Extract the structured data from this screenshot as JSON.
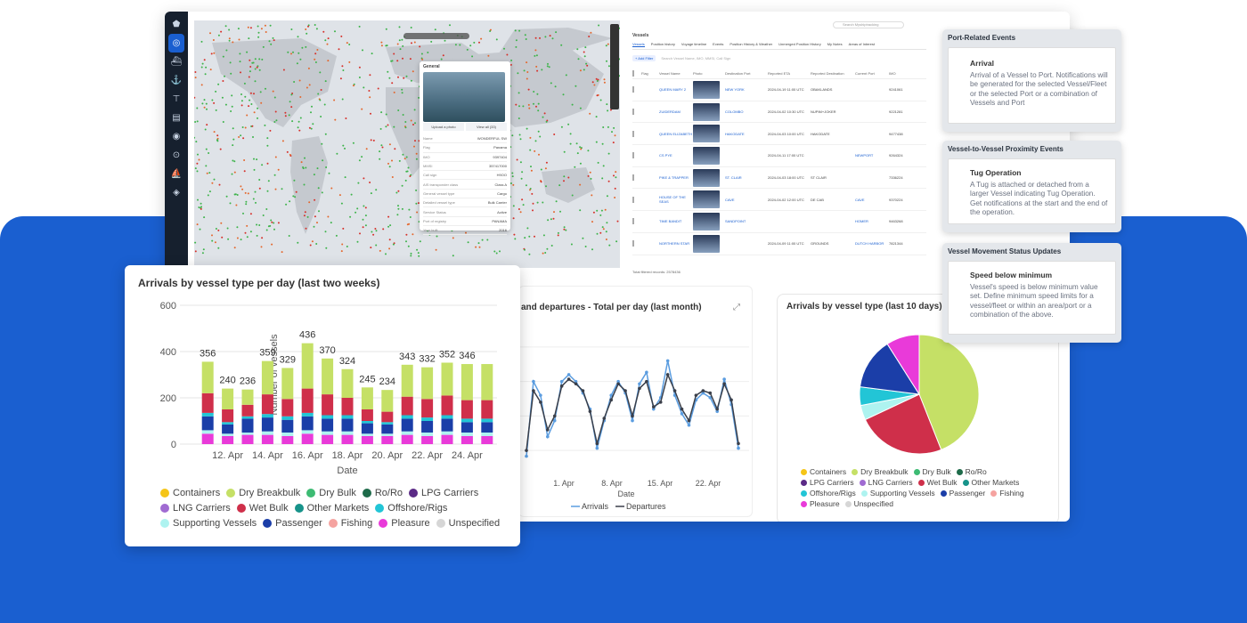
{
  "vessels_panel": {
    "search_placeholder": "Search Myshiptracking",
    "title": "Vessels",
    "tabs": [
      "Vessels",
      "Position history",
      "Voyage timeline",
      "Events",
      "Position History & Weather",
      "Unmerged Position History",
      "My Notes",
      "Areas of Interest"
    ],
    "add_filter": "+ Add Filter",
    "filter_placeholder": "Search Vessel Name, IMO, MMSI, Call Sign",
    "columns": [
      "Flag",
      "Vessel Name",
      "Photo",
      "Destination Port",
      "Reported ETA",
      "Reported Destination",
      "Current Port",
      "IMO"
    ],
    "rows": [
      {
        "name": "QUEEN MARY 2",
        "dest": "NEW YORK",
        "eta": "2024-04-19 11:00 UTC",
        "rdest": "OBAKLANDS",
        "port": "",
        "imo": "9241061"
      },
      {
        "name": "ZUIDERDAM",
        "dest": "COLOMBO",
        "eta": "2024-04-02 10:30 UTC",
        "rdest": "NUPIM+JOKER",
        "port": "",
        "imo": "9221281"
      },
      {
        "name": "QUEEN ELIZABETH",
        "dest": "HAKODATE",
        "eta": "2024-04-03 10:00 UTC",
        "rdest": "HAKODATE",
        "port": "",
        "imo": "9477438"
      },
      {
        "name": "CS PYE",
        "dest": "",
        "eta": "2024-04-11 17:00 UTC",
        "rdest": "",
        "port": "NEWPORT",
        "imo": "9264324"
      },
      {
        "name": "PIKE & TRAPPER",
        "dest": "ST. CLAIR",
        "eta": "2024-04-03 18:00 UTC",
        "rdest": "ST CLAIR",
        "port": "",
        "imo": "7336224"
      },
      {
        "name": "HOUSE OF THE SEAS",
        "dest": "CAVE",
        "eta": "2024-04-02 12:00 UTC",
        "rdest": "DE CAB",
        "port": "CAVE",
        "imo": "9370224"
      },
      {
        "name": "TIME BANDIT",
        "dest": "SANDPOINT",
        "eta": "",
        "rdest": "",
        "port": "HOMER",
        "imo": "9463268"
      },
      {
        "name": "NORTHERN STAR",
        "dest": "",
        "eta": "2024-04-09 11:00 UTC",
        "rdest": "GROUNDS",
        "port": "DUTCH HARBOR",
        "imo": "7821344"
      }
    ],
    "footer": "Total filtered records: 2578436"
  },
  "general_card": {
    "title": "General",
    "upload": "Upload a photo",
    "view_all": "View all (33)",
    "fields": [
      {
        "k": "Name",
        "v": "WONDERFUL SW"
      },
      {
        "k": "Flag",
        "v": "Panama"
      },
      {
        "k": "IMO",
        "v": "9397404"
      },
      {
        "k": "MMSI",
        "v": "357417000"
      },
      {
        "k": "Call sign",
        "v": "H9OO"
      },
      {
        "k": "AIS transponder class",
        "v": "Class A"
      },
      {
        "k": "General vessel type",
        "v": "Cargo"
      },
      {
        "k": "Detailed vessel type",
        "v": "Bulk Carrier"
      },
      {
        "k": "Service Status",
        "v": "Active"
      },
      {
        "k": "Port of registry",
        "v": "PANAMA"
      },
      {
        "k": "Year built",
        "v": "2016"
      }
    ]
  },
  "line_panel": {
    "title": "and departures - Total per day (last month)",
    "x_ticks": [
      "1. Apr",
      "8. Apr",
      "15. Apr",
      "22. Apr"
    ],
    "xlabel": "Date",
    "legend": [
      "Arrivals",
      "Departures"
    ]
  },
  "pie_panel": {
    "title": "Arrivals by vessel type (last 10 days)",
    "legend": [
      "Containers",
      "Dry Breakbulk",
      "Dry Bulk",
      "Ro/Ro",
      "LPG Carriers",
      "LNG Carriers",
      "Wet Bulk",
      "Other Markets",
      "Offshore/Rigs",
      "Supporting Vessels",
      "Passenger",
      "Fishing",
      "Pleasure",
      "Unspecified"
    ]
  },
  "bar_panel": {
    "title": "Arrivals by vessel type per day (last two weeks)",
    "legend": [
      "Containers",
      "Dry Breakbulk",
      "Dry Bulk",
      "Ro/Ro",
      "LPG Carriers",
      "LNG Carriers",
      "Wet Bulk",
      "Other Markets",
      "Offshore/Rigs",
      "Supporting Vessels",
      "Passenger",
      "Fishing",
      "Pleasure",
      "Unspecified"
    ]
  },
  "events": [
    {
      "header": "Port-Related Events",
      "name": "Arrival",
      "desc": "Arrival of a Vessel to Port. Notifications will be generated for the selected Vessel/Fleet or the selected Port or a combination of Vessels and Port"
    },
    {
      "header": "Vessel-to-Vessel Proximity Events",
      "name": "Tug Operation",
      "desc": "A Tug is attached or detached from a larger Vessel indicating Tug Operation. Get notifications at the start and the end of the operation."
    },
    {
      "header": "Vessel Movement Status Updates",
      "name": "Speed below minimum",
      "desc": "Vessel's speed is below minimum value set. Define minimum speed limits for a vessel/fleet or within an area/port or a combination of the above."
    }
  ],
  "colors": {
    "brand_blue": "#1a5fd0",
    "Containers": "#f5c518",
    "Dry Breakbulk": "#c5e066",
    "Dry Bulk": "#3dbb73",
    "Ro/Ro": "#1e6b4a",
    "LPG Carriers": "#5b2a86",
    "LNG Carriers": "#a06bd2",
    "Wet Bulk": "#cf2f4a",
    "Other Markets": "#17938a",
    "Offshore/Rigs": "#22c5d6",
    "Supporting Vessels": "#aef3f0",
    "Passenger": "#1b3ea8",
    "Fishing": "#f5a3a0",
    "Pleasure": "#e93ad9",
    "Unspecified": "#d6d6d6"
  },
  "chart_data": [
    {
      "type": "bar",
      "title": "Arrivals by vessel type per day (last two weeks)",
      "xlabel": "Date",
      "ylabel": "Number of vessels",
      "ylim": [
        0,
        600
      ],
      "y_ticks": [
        0,
        200,
        400,
        600
      ],
      "x_ticks": [
        "12. Apr",
        "14. Apr",
        "16. Apr",
        "18. Apr",
        "20. Apr",
        "22. Apr",
        "24. Apr"
      ],
      "categories": [
        "11. Apr",
        "12. Apr",
        "13. Apr",
        "14. Apr",
        "15. Apr",
        "16. Apr",
        "17. Apr",
        "18. Apr",
        "19. Apr",
        "20. Apr",
        "21. Apr",
        "22. Apr",
        "23. Apr",
        "24. Apr",
        "25. Apr"
      ],
      "totals": [
        356,
        240,
        236,
        359,
        329,
        436,
        370,
        324,
        245,
        234,
        343,
        332,
        352,
        346,
        346
      ],
      "total_labels_shown": [
        356,
        240,
        236,
        359,
        329,
        436,
        370,
        324,
        245,
        234,
        343,
        332,
        352,
        346
      ],
      "series": [
        {
          "name": "Pleasure",
          "values": [
            45,
            35,
            40,
            40,
            35,
            45,
            40,
            40,
            35,
            35,
            40,
            35,
            40,
            35,
            35
          ]
        },
        {
          "name": "Supporting Vessels",
          "values": [
            15,
            10,
            10,
            15,
            15,
            15,
            15,
            15,
            10,
            10,
            15,
            15,
            15,
            15,
            15
          ]
        },
        {
          "name": "Passenger",
          "values": [
            60,
            40,
            60,
            60,
            55,
            60,
            55,
            55,
            45,
            40,
            55,
            50,
            55,
            45,
            45
          ]
        },
        {
          "name": "Offshore/Rigs",
          "values": [
            15,
            10,
            10,
            15,
            15,
            15,
            15,
            15,
            10,
            10,
            15,
            15,
            15,
            15,
            15
          ]
        },
        {
          "name": "Wet Bulk",
          "values": [
            85,
            55,
            50,
            85,
            75,
            105,
            90,
            75,
            50,
            45,
            80,
            80,
            85,
            80,
            80
          ]
        },
        {
          "name": "Dry Breakbulk",
          "values": [
            136,
            90,
            66,
            144,
            134,
            196,
            155,
            124,
            95,
            94,
            138,
            137,
            142,
            156,
            156
          ]
        }
      ]
    },
    {
      "type": "line",
      "title": "and departures - Total per day (last month)",
      "xlabel": "Date",
      "x_ticks": [
        "1. Apr",
        "8. Apr",
        "15. Apr",
        "22. Apr"
      ],
      "series": [
        {
          "name": "Arrivals",
          "values": [
            55,
            120,
            108,
            72,
            86,
            120,
            126,
            120,
            110,
            96,
            62,
            86,
            108,
            120,
            110,
            86,
            118,
            128,
            96,
            106,
            138,
            108,
            92,
            82,
            104,
            110,
            106,
            94,
            122,
            100,
            62
          ]
        },
        {
          "name": "Departures",
          "values": [
            60,
            112,
            102,
            78,
            90,
            116,
            122,
            118,
            112,
            94,
            66,
            88,
            104,
            118,
            112,
            90,
            114,
            120,
            98,
            102,
            126,
            112,
            96,
            86,
            108,
            112,
            110,
            96,
            118,
            104,
            66
          ]
        }
      ]
    },
    {
      "type": "pie",
      "title": "Arrivals by vessel type (last 10 days)",
      "series": [
        {
          "name": "Dry Breakbulk",
          "value": 44
        },
        {
          "name": "Wet Bulk",
          "value": 24
        },
        {
          "name": "Supporting Vessels",
          "value": 4
        },
        {
          "name": "Offshore/Rigs",
          "value": 5
        },
        {
          "name": "Passenger",
          "value": 14
        },
        {
          "name": "Pleasure",
          "value": 9
        }
      ]
    }
  ]
}
